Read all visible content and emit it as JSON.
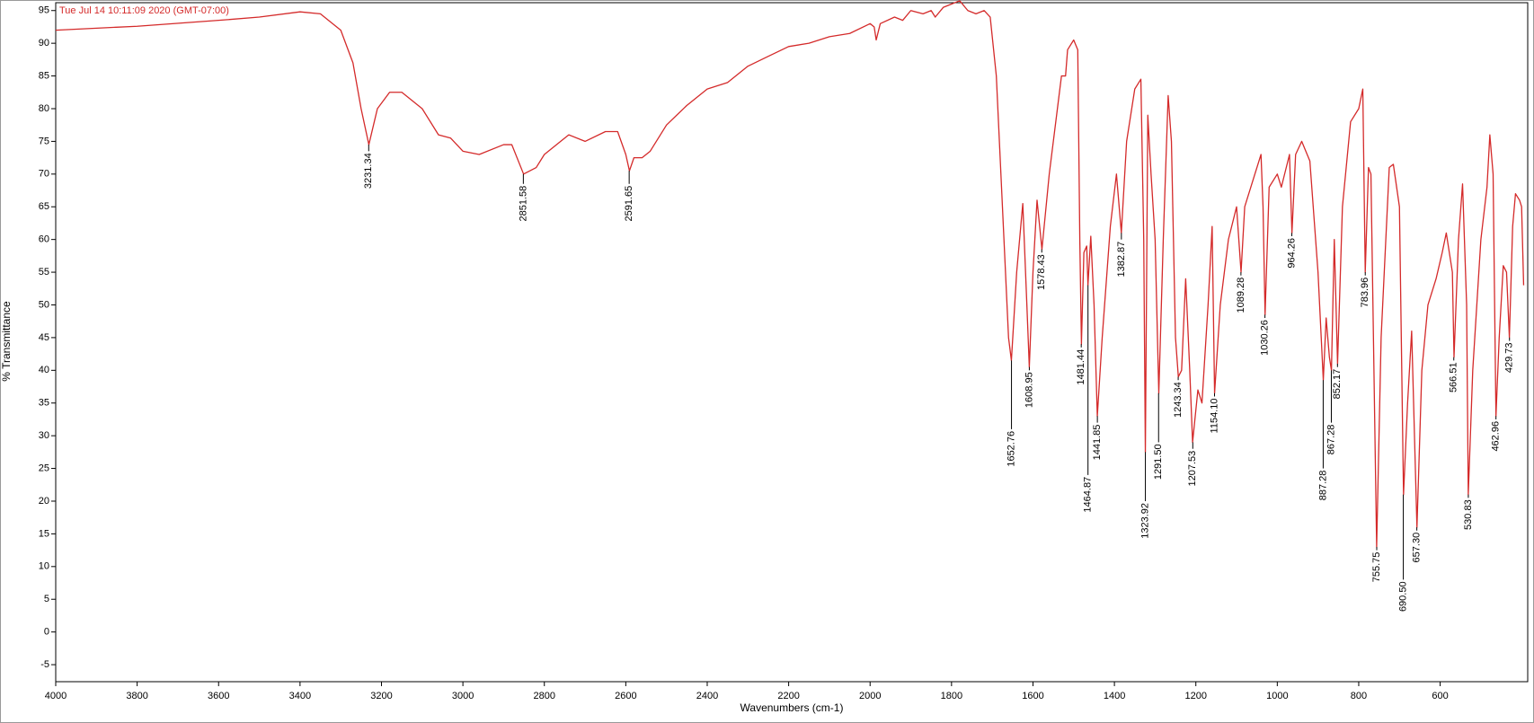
{
  "chart_data": {
    "type": "line",
    "annotation": "Tue Jul 14 10:11:09 2020 (GMT-07:00)",
    "x_label": "Wavenumbers (cm-1)",
    "y_label": "% Transmittance",
    "color": "#d42a2a",
    "xlim": [
      4000,
      385
    ],
    "ylim": [
      -7.6,
      96.2
    ],
    "xticks": [
      4000,
      3800,
      3600,
      3400,
      3200,
      3000,
      2800,
      2600,
      2400,
      2200,
      2000,
      1800,
      1600,
      1400,
      1200,
      1000,
      800,
      600
    ],
    "yticks": [
      -5,
      0,
      5,
      10,
      15,
      20,
      25,
      30,
      35,
      40,
      45,
      50,
      55,
      60,
      65,
      70,
      75,
      80,
      85,
      90,
      95
    ],
    "x": [
      4000,
      3800,
      3600,
      3500,
      3400,
      3350,
      3300,
      3270,
      3250,
      3231,
      3210,
      3180,
      3150,
      3100,
      3060,
      3030,
      3000,
      2960,
      2900,
      2880,
      2851,
      2820,
      2800,
      2760,
      2740,
      2700,
      2650,
      2620,
      2600,
      2591,
      2580,
      2560,
      2540,
      2500,
      2450,
      2400,
      2350,
      2300,
      2250,
      2200,
      2150,
      2100,
      2050,
      2000,
      1990,
      1985,
      1975,
      1940,
      1920,
      1900,
      1870,
      1850,
      1840,
      1820,
      1800,
      1780,
      1760,
      1740,
      1720,
      1705,
      1690,
      1675,
      1660,
      1653,
      1640,
      1625,
      1615,
      1609,
      1600,
      1590,
      1578,
      1560,
      1540,
      1530,
      1520,
      1515,
      1500,
      1490,
      1485,
      1481,
      1475,
      1468,
      1465,
      1458,
      1450,
      1442,
      1430,
      1410,
      1395,
      1383,
      1370,
      1350,
      1335,
      1328,
      1324,
      1318,
      1310,
      1300,
      1291,
      1280,
      1268,
      1260,
      1250,
      1243,
      1235,
      1225,
      1215,
      1208,
      1195,
      1185,
      1170,
      1160,
      1154,
      1140,
      1120,
      1100,
      1089,
      1080,
      1050,
      1040,
      1035,
      1030,
      1020,
      1000,
      990,
      970,
      964,
      955,
      940,
      920,
      900,
      887,
      880,
      872,
      867,
      860,
      852,
      840,
      820,
      800,
      790,
      784,
      776,
      770,
      756,
      745,
      725,
      715,
      700,
      690,
      680,
      670,
      657,
      645,
      630,
      610,
      595,
      585,
      570,
      566,
      555,
      545,
      535,
      531,
      520,
      500,
      485,
      478,
      470,
      463,
      455,
      445,
      437,
      430,
      422,
      415,
      405,
      400,
      395
    ],
    "values": [
      92,
      92.6,
      93.5,
      94,
      94.8,
      94.5,
      92,
      87,
      80,
      74.5,
      80,
      82.5,
      82.5,
      80,
      76,
      75.5,
      73.5,
      73,
      74.5,
      74.5,
      70,
      71,
      73,
      75,
      76,
      75,
      76.5,
      76.5,
      73,
      70.5,
      72.5,
      72.5,
      73.5,
      77.5,
      80.5,
      83,
      84,
      86.5,
      88,
      89.5,
      90,
      91,
      91.5,
      93,
      92.5,
      90.5,
      93,
      94,
      93.5,
      95,
      94.5,
      95,
      94,
      95.5,
      96,
      96.5,
      95,
      94.5,
      95,
      94,
      85,
      65,
      45,
      41.5,
      55,
      65.5,
      50,
      40.5,
      55,
      66,
      58.5,
      70,
      80,
      85,
      85,
      89,
      90.5,
      89,
      60,
      44,
      58,
      59,
      53,
      60.5,
      50,
      33,
      45,
      62,
      70,
      61,
      75,
      83,
      84.5,
      60,
      27.5,
      79,
      70,
      60,
      36.5,
      60,
      82,
      75,
      45,
      39,
      40,
      54,
      40,
      29,
      37,
      35,
      50,
      62,
      36.5,
      50,
      60,
      65,
      55,
      65,
      71,
      73,
      65,
      48.5,
      68,
      70,
      68,
      73,
      61,
      73,
      75,
      72,
      55,
      38.5,
      48,
      42,
      40,
      60,
      41,
      65,
      78,
      80,
      83,
      55,
      71,
      70,
      13,
      45,
      71,
      71.5,
      65,
      21,
      35,
      46,
      16,
      40,
      50,
      54,
      58,
      61,
      55,
      42,
      60,
      68.5,
      50,
      21,
      40,
      60,
      68,
      76,
      70,
      33,
      45,
      56,
      55,
      45,
      62,
      67,
      66,
      65,
      53
    ],
    "peaks": [
      {
        "x": 3231.34,
        "y": 74.5,
        "label": "3231.34"
      },
      {
        "x": 2851.58,
        "y": 70,
        "label": "2851.58"
      },
      {
        "x": 2591.65,
        "y": 70.5,
        "label": "2591.65"
      },
      {
        "x": 1652.76,
        "y": 41.5,
        "label": "1652.76"
      },
      {
        "x": 1608.95,
        "y": 40.5,
        "label": "1608.95"
      },
      {
        "x": 1578.43,
        "y": 58.5,
        "label": "1578.43"
      },
      {
        "x": 1481.44,
        "y": 44,
        "label": "1481.44"
      },
      {
        "x": 1464.87,
        "y": 53,
        "label": "1464.87"
      },
      {
        "x": 1441.85,
        "y": 33,
        "label": "1441.85"
      },
      {
        "x": 1382.87,
        "y": 61,
        "label": "1382.87"
      },
      {
        "x": 1323.92,
        "y": 27.5,
        "label": "1323.92"
      },
      {
        "x": 1291.5,
        "y": 36.5,
        "label": "1291.50"
      },
      {
        "x": 1243.34,
        "y": 39,
        "label": "1243.34"
      },
      {
        "x": 1207.53,
        "y": 29,
        "label": "1207.53"
      },
      {
        "x": 1154.1,
        "y": 36.5,
        "label": "1154.10"
      },
      {
        "x": 1089.28,
        "y": 55,
        "label": "1089.28"
      },
      {
        "x": 1030.26,
        "y": 48.5,
        "label": "1030.26"
      },
      {
        "x": 964.26,
        "y": 61,
        "label": "964.26"
      },
      {
        "x": 887.28,
        "y": 38.5,
        "label": "887.28"
      },
      {
        "x": 867.28,
        "y": 40,
        "label": "867.28"
      },
      {
        "x": 852.17,
        "y": 41,
        "label": "852.17"
      },
      {
        "x": 783.96,
        "y": 55,
        "label": "783.96"
      },
      {
        "x": 755.75,
        "y": 13,
        "label": "755.75"
      },
      {
        "x": 690.5,
        "y": 21,
        "label": "690.50"
      },
      {
        "x": 657.3,
        "y": 16,
        "label": "657.30"
      },
      {
        "x": 566.51,
        "y": 42,
        "label": "566.51"
      },
      {
        "x": 530.83,
        "y": 21,
        "label": "530.83"
      },
      {
        "x": 462.96,
        "y": 33,
        "label": "462.96"
      },
      {
        "x": 429.73,
        "y": 45,
        "label": "429.73"
      }
    ]
  }
}
